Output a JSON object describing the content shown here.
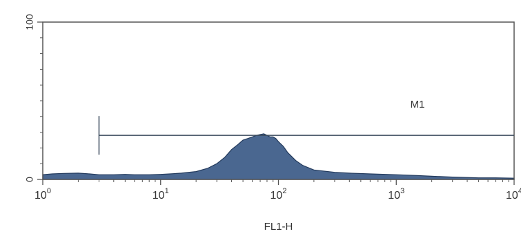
{
  "chart_data": {
    "type": "area",
    "title": "",
    "xlabel": "FL1-H",
    "ylabel": "",
    "x_scale": "log",
    "xlim": [
      1,
      10000
    ],
    "ylim": [
      0,
      100
    ],
    "x_ticks": [
      {
        "value": 1,
        "base": "10",
        "exp": "0"
      },
      {
        "value": 10,
        "base": "10",
        "exp": "1"
      },
      {
        "value": 100,
        "base": "10",
        "exp": "2"
      },
      {
        "value": 1000,
        "base": "10",
        "exp": "3"
      },
      {
        "value": 10000,
        "base": "10",
        "exp": "4"
      }
    ],
    "y_ticks": [
      {
        "value": 0,
        "label": "0"
      },
      {
        "value": 100,
        "label": "100"
      }
    ],
    "grid": false,
    "legend": "none",
    "fill_color": "#4a6790",
    "line_color": "#233a5c",
    "series": [
      {
        "x": [
          1,
          1.2,
          1.5,
          2,
          2.5,
          3,
          4,
          5,
          6,
          8,
          10,
          12,
          15,
          20,
          25,
          30,
          35,
          40,
          45,
          50,
          55,
          60,
          65,
          70,
          75,
          80,
          85,
          90,
          95,
          100,
          110,
          120,
          140,
          160,
          200,
          300,
          400,
          600,
          1000,
          1500,
          2000,
          3000,
          5000,
          7000,
          10000
        ],
        "values": [
          3,
          3.5,
          3.8,
          4,
          3.5,
          3,
          3,
          3.2,
          3,
          3,
          3.2,
          3.5,
          4,
          5,
          7,
          10,
          14,
          19,
          22,
          25,
          26,
          27,
          28,
          28.5,
          29,
          28,
          27,
          27,
          26,
          24,
          21,
          17,
          12,
          9,
          6,
          4.5,
          4,
          3.5,
          3,
          2.5,
          2,
          1.5,
          1,
          1,
          0.8
        ]
      }
    ],
    "annotations": [
      {
        "label": "M1",
        "x_start": 3,
        "x_end": 10000,
        "y": 28
      }
    ]
  }
}
